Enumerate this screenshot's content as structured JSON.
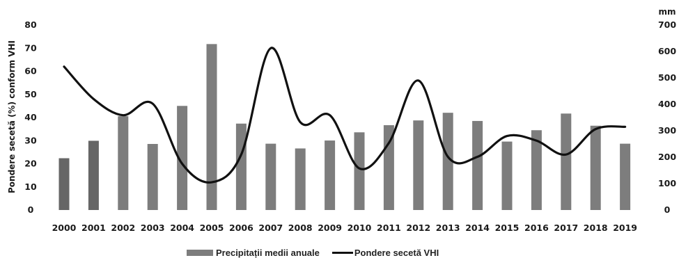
{
  "chart_data": {
    "type": "bar+line",
    "categories": [
      "2000",
      "2001",
      "2002",
      "2003",
      "2004",
      "2005",
      "2006",
      "2007",
      "2008",
      "2009",
      "2010",
      "2011",
      "2012",
      "2013",
      "2014",
      "2015",
      "2016",
      "2017",
      "2018",
      "2019"
    ],
    "series": [
      {
        "name": "Precipitații medii anuale",
        "type": "bar",
        "axis": "right",
        "values": [
          196,
          262,
          355,
          250,
          394,
          628,
          327,
          251,
          233,
          263,
          294,
          321,
          339,
          368,
          337,
          259,
          302,
          365,
          319,
          251
        ]
      },
      {
        "name": "Pondere secetă VHI",
        "type": "line",
        "axis": "left",
        "values": [
          62,
          48,
          41,
          46,
          20,
          12,
          24,
          70,
          38,
          41,
          18,
          29,
          56,
          23,
          23,
          32,
          30,
          24,
          35,
          36
        ]
      }
    ],
    "left_axis": {
      "label": "Pondere secetă (%) conform VHI",
      "ticks": [
        "0",
        "10",
        "20",
        "30",
        "40",
        "50",
        "60",
        "70",
        "80"
      ],
      "range": [
        0,
        80
      ]
    },
    "right_axis": {
      "unit": "mm",
      "ticks": [
        "0",
        "100",
        "200",
        "300",
        "400",
        "500",
        "600",
        "700"
      ],
      "range": [
        0,
        700
      ]
    },
    "colors": {
      "bar": "#7d7d7d",
      "bar_dark": "#666666",
      "line": "#111111"
    },
    "legend_position": "bottom",
    "grid": false
  }
}
